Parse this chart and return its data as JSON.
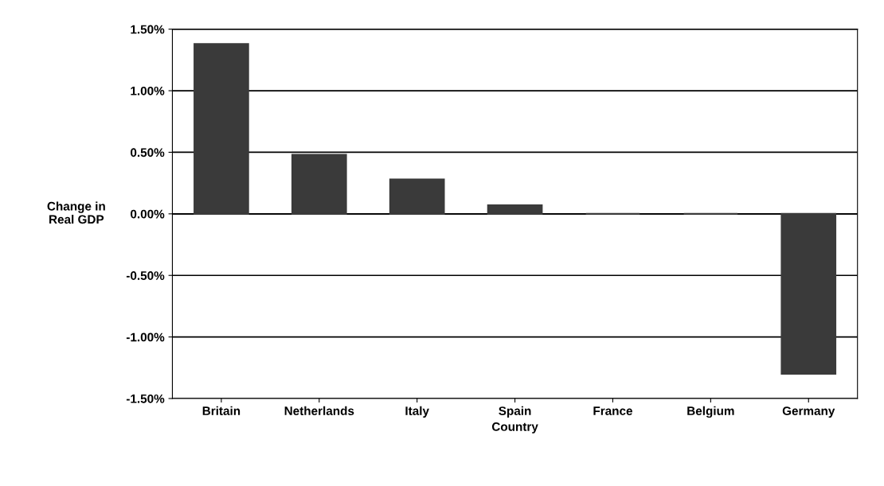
{
  "chart_data": {
    "type": "bar",
    "xlabel": "Country",
    "ylabel": "Change in\nReal GDP",
    "categories": [
      "Britain",
      "Netherlands",
      "Italy",
      "Spain",
      "France",
      "Belgium",
      "Germany"
    ],
    "values": [
      1.38,
      0.48,
      0.28,
      0.07,
      0,
      0,
      -1.3
    ],
    "color": "#3a3a3a",
    "ylim": [
      -1.5,
      1.5
    ],
    "yticks": [
      {
        "value": -1.5,
        "label": "-1.50%"
      },
      {
        "value": -1.0,
        "label": "-1.00%"
      },
      {
        "value": -0.5,
        "label": "-0.50%"
      },
      {
        "value": 0,
        "label": "0.00%"
      },
      {
        "value": 0.5,
        "label": "0.50%"
      },
      {
        "value": 1.0,
        "label": "1.00%"
      },
      {
        "value": 1.5,
        "label": "1.50%"
      }
    ],
    "grid": "y"
  }
}
